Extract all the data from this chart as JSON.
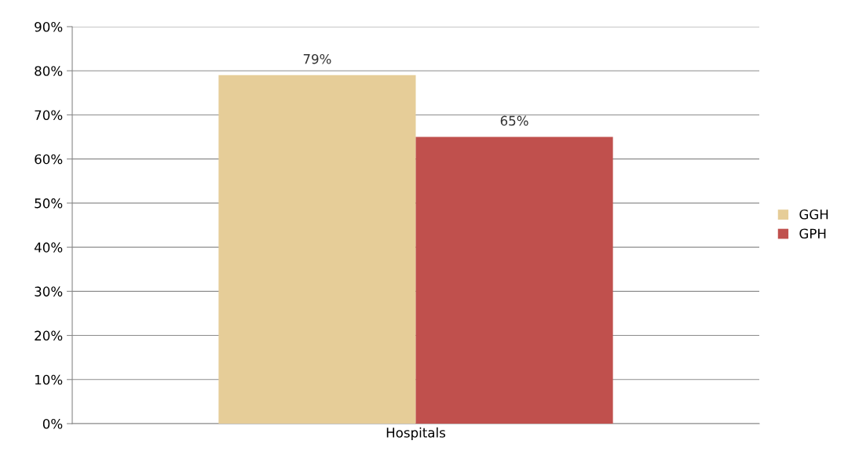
{
  "chart_data": {
    "type": "bar",
    "categories": [
      "Hospitals"
    ],
    "series": [
      {
        "name": "GGH",
        "color": "#e6cd98",
        "values": [
          79
        ],
        "value_labels": [
          "79%"
        ]
      },
      {
        "name": "GPH",
        "color": "#c0504d",
        "values": [
          65
        ],
        "value_labels": [
          "65%"
        ]
      }
    ],
    "ylim": [
      0,
      90
    ],
    "yticks": [
      {
        "value": 0,
        "label": "0%"
      },
      {
        "value": 10,
        "label": "10%"
      },
      {
        "value": 20,
        "label": "20%"
      },
      {
        "value": 30,
        "label": "30%"
      },
      {
        "value": 40,
        "label": "40%"
      },
      {
        "value": 50,
        "label": "50%"
      },
      {
        "value": 60,
        "label": "60%"
      },
      {
        "value": 70,
        "label": "70%"
      },
      {
        "value": 80,
        "label": "80%"
      },
      {
        "value": 90,
        "label": "90%"
      }
    ],
    "grid": "y",
    "legend": "right"
  }
}
